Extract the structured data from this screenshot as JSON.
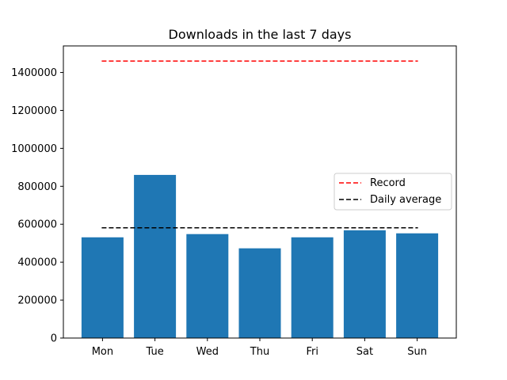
{
  "chart_data": {
    "type": "bar",
    "title": "Downloads in the last 7 days",
    "xlabel": "",
    "ylabel": "",
    "categories": [
      "Mon",
      "Tue",
      "Wed",
      "Thu",
      "Fri",
      "Sat",
      "Sun"
    ],
    "values": [
      531000,
      860000,
      548000,
      473000,
      531000,
      568000,
      552000
    ],
    "ylim": [
      0,
      1540000
    ],
    "yticks": [
      0,
      200000,
      400000,
      600000,
      800000,
      1000000,
      1200000,
      1400000
    ],
    "ytick_labels": [
      "0",
      "200000",
      "400000",
      "600000",
      "800000",
      "1000000",
      "1200000",
      "1400000"
    ],
    "bar_color": "#1f77b4",
    "reference_lines": [
      {
        "name": "Record",
        "value": 1460000,
        "color": "#ff0000",
        "style": "dashed"
      },
      {
        "name": "Daily average",
        "value": 581000,
        "color": "#000000",
        "style": "dashed"
      }
    ],
    "grid": false,
    "legend_position": "center-right"
  }
}
